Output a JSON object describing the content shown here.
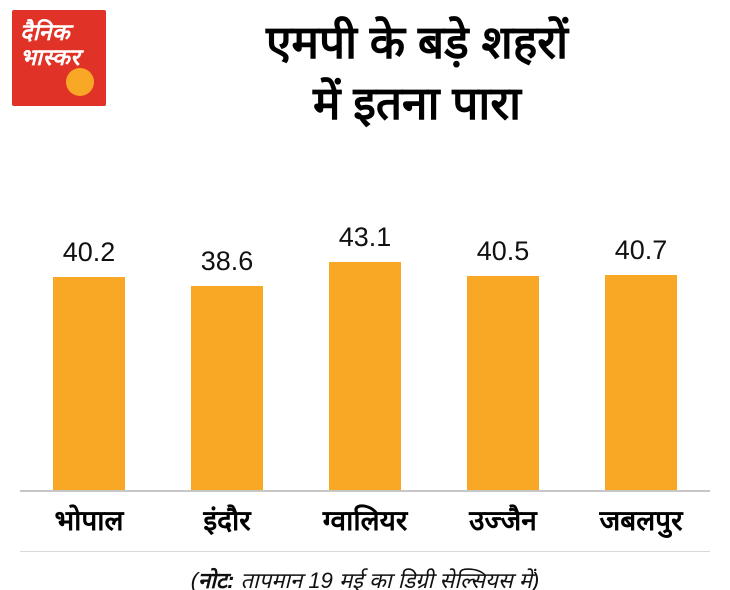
{
  "brand": {
    "logo_line1": "दैनिक",
    "logo_line2": "भास्कर",
    "logo_bg": "#E03226",
    "logo_dot": "#F9A825"
  },
  "title": {
    "line1": "एमपी के बड़े शहरों",
    "line2": "में इतना पारा"
  },
  "note": {
    "open": "(",
    "label": "नोट:",
    "rest": " तापमान 19 मई का डिग्री सेल्सियस में)"
  },
  "chart_data": {
    "type": "bar",
    "categories": [
      "भोपाल",
      "इंदौर",
      "ग्वालियर",
      "उज्जैन",
      "जबलपुर"
    ],
    "values": [
      40.2,
      38.6,
      43.1,
      40.5,
      40.7
    ],
    "title": "एमपी के बड़े शहरों में इतना पारा",
    "xlabel": "",
    "ylabel": "",
    "ylim": [
      0,
      45
    ],
    "bar_color": "#F9A825",
    "grid": false,
    "legend": false
  }
}
